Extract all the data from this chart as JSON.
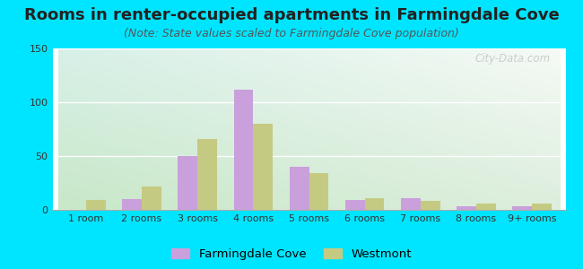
{
  "title": "Rooms in renter-occupied apartments in Farmingdale Cove",
  "subtitle": "(Note: State values scaled to Farmingdale Cove population)",
  "categories": [
    "1 room",
    "2 rooms",
    "3 rooms",
    "4 rooms",
    "5 rooms",
    "6 rooms",
    "7 rooms",
    "8 rooms",
    "9+ rooms"
  ],
  "farmingdale_values": [
    0,
    10,
    50,
    112,
    40,
    9,
    11,
    3,
    3
  ],
  "westmont_values": [
    9,
    22,
    66,
    80,
    34,
    11,
    8,
    6,
    6
  ],
  "farmingdale_color": "#c9a0dc",
  "westmont_color": "#c5ca82",
  "ylim": [
    0,
    150
  ],
  "yticks": [
    0,
    50,
    100,
    150
  ],
  "background_outer": "#00e5ff",
  "title_fontsize": 13,
  "subtitle_fontsize": 9,
  "tick_fontsize": 8,
  "legend_fontsize": 9.5,
  "watermark": "City-Data.com"
}
